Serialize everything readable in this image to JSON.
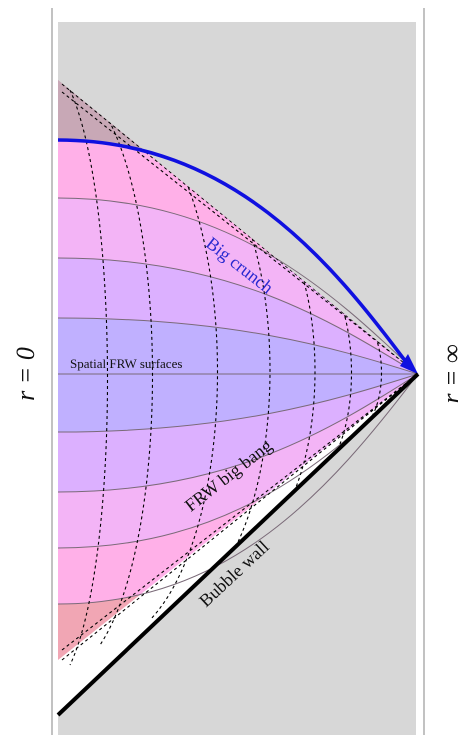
{
  "labels": {
    "origin_axis": "r = 0",
    "infinity_axis": "r = ∞",
    "big_crunch": "Big crunch",
    "big_bang": "FRW big bang",
    "bubble_wall": "Bubble wall",
    "spatial_surfaces": "Spatial FRW surfaces"
  },
  "colors": {
    "background": "#d7d7d7",
    "frame_line": "#9a9a9a",
    "region_center": "#c0b0ff",
    "region_inner": "#dcb0ff",
    "region_mid": "#f3b4f6",
    "region_outer": "#ffb0e8",
    "region_edge_top": "#c8a8b6",
    "region_edge_bottom": "#f1a6b4",
    "crunch_curve": "#1010e0",
    "crunch_text": "#2a2ad0",
    "wall": "#000000",
    "surface_lines": "#7a6a78",
    "dashed_lines": "#000000"
  },
  "icons": {
    "crunch_arrow": "arrowhead-icon"
  }
}
